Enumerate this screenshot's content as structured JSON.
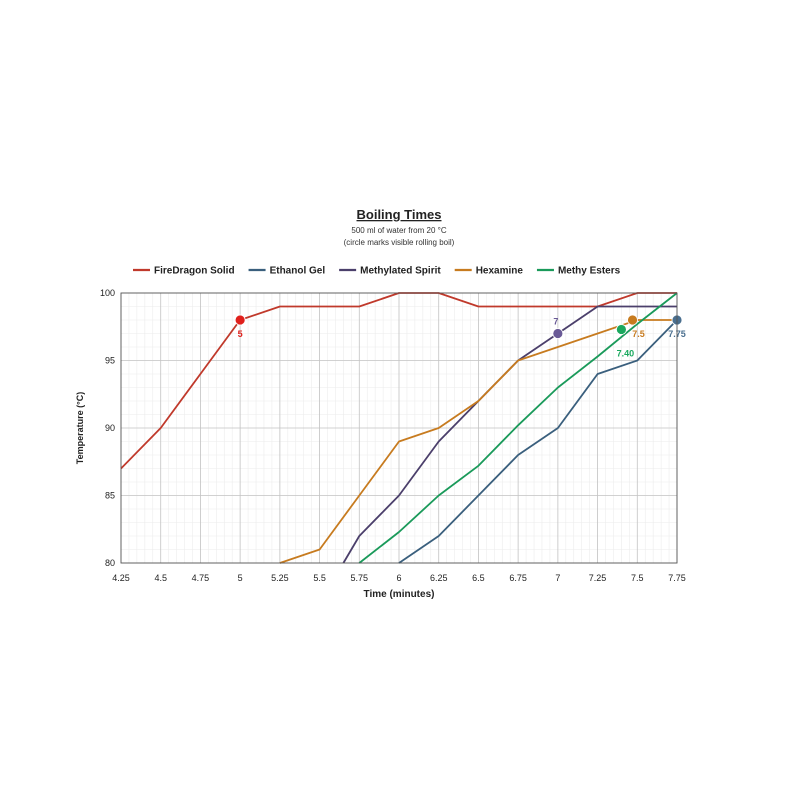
{
  "chart_data": {
    "type": "line",
    "title": "Boiling Times",
    "subtitle_line1": "500  ml of water from 20 °C",
    "subtitle_line2": "(circle marks visible rolling boil)",
    "xlabel": "Time (minutes)",
    "ylabel": "Temperature (°C)",
    "xlim": [
      4.25,
      7.75
    ],
    "ylim": [
      80,
      100
    ],
    "x_ticks": [
      4.25,
      4.5,
      4.75,
      5,
      5.25,
      5.5,
      5.75,
      6,
      6.25,
      6.5,
      6.75,
      7,
      7.25,
      7.5,
      7.75
    ],
    "x_tick_labels": [
      "4.25",
      "4.5",
      "4.75",
      "5",
      "5.25",
      "5.5",
      "5.75",
      "6",
      "6.25",
      "6.5",
      "6.75",
      "7",
      "7.25",
      "7.5",
      "7.75"
    ],
    "y_ticks": [
      80,
      85,
      90,
      95,
      100
    ],
    "y_tick_labels": [
      "80",
      "85",
      "90",
      "95",
      "100"
    ],
    "grid": true,
    "legend_position": "top",
    "series": [
      {
        "name": "FireDragon Solid",
        "color": "#c0392b",
        "points": [
          [
            4.25,
            87
          ],
          [
            4.5,
            90
          ],
          [
            4.75,
            94
          ],
          [
            5,
            98
          ],
          [
            5.25,
            99
          ],
          [
            5.5,
            99
          ],
          [
            5.75,
            99
          ],
          [
            6,
            100
          ],
          [
            6.25,
            100
          ],
          [
            6.5,
            99
          ],
          [
            6.75,
            99
          ],
          [
            7,
            99
          ],
          [
            7.25,
            99
          ],
          [
            7.5,
            100
          ],
          [
            7.75,
            100
          ]
        ],
        "marker": {
          "x": 5,
          "y": 98,
          "label": "5",
          "color": "#e0201c"
        }
      },
      {
        "name": "Ethanol Gel",
        "color": "#3a5f7d",
        "points": [
          [
            6,
            80
          ],
          [
            6.25,
            82
          ],
          [
            6.5,
            85
          ],
          [
            6.75,
            88
          ],
          [
            7,
            90
          ],
          [
            7.25,
            94
          ],
          [
            7.5,
            95
          ],
          [
            7.75,
            98
          ]
        ],
        "marker": {
          "x": 7.75,
          "y": 98,
          "label": "7.75",
          "color": "#4a6f8f"
        }
      },
      {
        "name": "Methylated Spirit",
        "color": "#4b3f6b",
        "points": [
          [
            5.65,
            80
          ],
          [
            5.75,
            82
          ],
          [
            6,
            85
          ],
          [
            6.25,
            89
          ],
          [
            6.5,
            92
          ],
          [
            6.75,
            95
          ],
          [
            7,
            97
          ],
          [
            7.25,
            99
          ],
          [
            7.5,
            99
          ],
          [
            7.75,
            99
          ]
        ],
        "marker": {
          "x": 7,
          "y": 97,
          "label": "7",
          "color": "#6a5a96"
        }
      },
      {
        "name": "Hexamine",
        "color": "#c77b1f",
        "points": [
          [
            5.25,
            80
          ],
          [
            5.5,
            81
          ],
          [
            5.75,
            85
          ],
          [
            6,
            89
          ],
          [
            6.25,
            90
          ],
          [
            6.5,
            92
          ],
          [
            6.75,
            95
          ],
          [
            7,
            96
          ],
          [
            7.25,
            97
          ],
          [
            7.5,
            98
          ],
          [
            7.75,
            98
          ]
        ],
        "marker": {
          "x": 7.47,
          "y": 98,
          "label": "7.5",
          "color": "#c77b1f"
        }
      },
      {
        "name": "Methy Esters",
        "color": "#1a9a5a",
        "points": [
          [
            5.75,
            80
          ],
          [
            6,
            82.3
          ],
          [
            6.25,
            85
          ],
          [
            6.5,
            87.2
          ],
          [
            6.75,
            90.2
          ],
          [
            7,
            93
          ],
          [
            7.25,
            95.3
          ],
          [
            7.5,
            97.7
          ],
          [
            7.75,
            100
          ]
        ],
        "marker": {
          "x": 7.4,
          "y": 97.3,
          "label": "7.40",
          "color": "#1aa85e"
        }
      }
    ]
  }
}
